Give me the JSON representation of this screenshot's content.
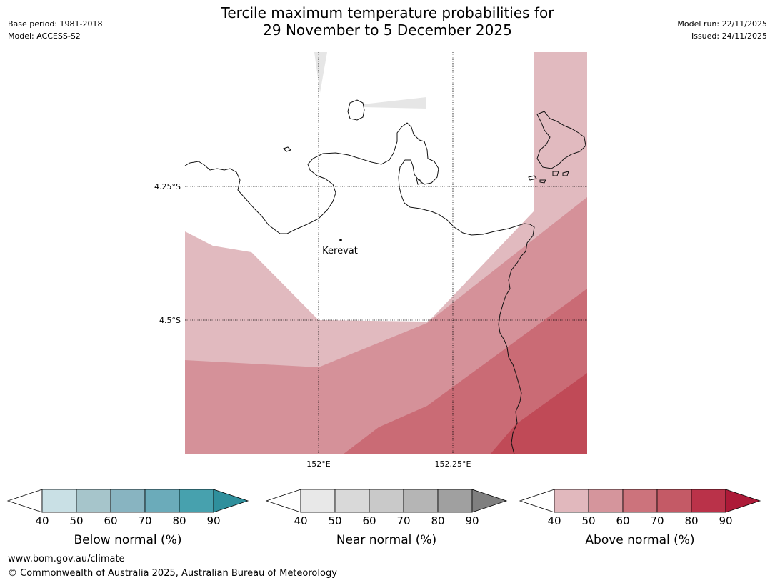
{
  "header": {
    "base_period": "Base period: 1981-2018",
    "model": "Model: ACCESS-S2",
    "title_line1": "Tercile maximum temperature probabilities for",
    "title_line2": "29 November to 5 December 2025",
    "model_run": "Model run: 22/11/2025",
    "issued": "Issued: 24/11/2025"
  },
  "map": {
    "lat_labels": [
      "4.25°S",
      "4.5°S"
    ],
    "lon_labels": [
      "152°E",
      "152.25°E"
    ],
    "place_name": "Kerevat",
    "colors": {
      "above_40_50": "#e1babf",
      "above_50_60": "#d59199",
      "above_60_70": "#ca6b75",
      "above_70_80": "#c04a57",
      "near_40_50": "#e6e6e6"
    }
  },
  "legends": [
    {
      "label": "Below normal (%)",
      "ticks": [
        "40",
        "50",
        "60",
        "70",
        "80",
        "90"
      ],
      "colors": [
        "#ffffff",
        "#c9e0e5",
        "#a6c5cb",
        "#88b4c1",
        "#6babba",
        "#47a1ae",
        "#2f8f9c"
      ]
    },
    {
      "label": "Near normal (%)",
      "ticks": [
        "40",
        "50",
        "60",
        "70",
        "80",
        "90"
      ],
      "colors": [
        "#ffffff",
        "#e8e8e8",
        "#d9d9d9",
        "#c9c9c9",
        "#b5b5b5",
        "#a0a0a0",
        "#7f7f7f"
      ]
    },
    {
      "label": "Above normal (%)",
      "ticks": [
        "40",
        "50",
        "60",
        "70",
        "80",
        "90"
      ],
      "colors": [
        "#ffffff",
        "#e1b8bd",
        "#d5959c",
        "#cc737c",
        "#c45a66",
        "#ba3249",
        "#ad1a38"
      ]
    }
  ],
  "footer": {
    "url": "www.bom.gov.au/climate",
    "copyright": "© Commonwealth of Australia 2025, Australian Bureau of Meteorology"
  }
}
